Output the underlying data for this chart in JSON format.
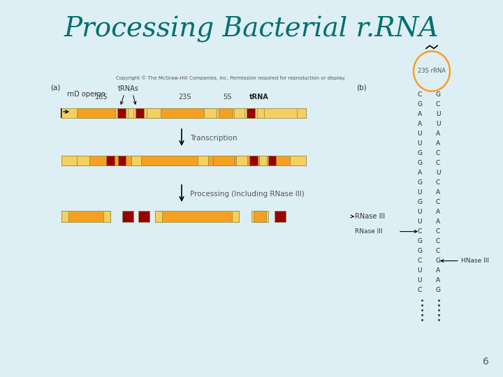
{
  "title": "Processing Bacterial r.RNA",
  "title_color": "#007070",
  "title_fontsize": 28,
  "bg_color": "#deeef5",
  "copyright_text": "Copyright © The McGraw-Hill Companies, Inc. Permission required for reproduction or display.",
  "label_a": "(a)",
  "label_b": "(b)",
  "operon_label": "rnD operon",
  "orange_color": "#F5A020",
  "yellow_color": "#F5D060",
  "red_color": "#990000",
  "page_number": "6",
  "rna_stem_pairs": [
    [
      "C",
      "G"
    ],
    [
      "G",
      "C"
    ],
    [
      "A",
      "U"
    ],
    [
      "A",
      "U"
    ],
    [
      "U",
      "A"
    ],
    [
      "U",
      "A"
    ],
    [
      "G",
      "C"
    ],
    [
      "G",
      "C"
    ],
    [
      "A",
      "U"
    ],
    [
      "G",
      "C"
    ],
    [
      "U",
      "A"
    ],
    [
      "G",
      "C"
    ],
    [
      "U",
      "A"
    ],
    [
      "U",
      "A"
    ],
    [
      "C",
      "C"
    ],
    [
      "G",
      "C"
    ],
    [
      "G",
      "C"
    ],
    [
      "C",
      "G"
    ],
    [
      "U",
      "A"
    ],
    [
      "U",
      "A"
    ],
    [
      "C",
      "G"
    ]
  ]
}
